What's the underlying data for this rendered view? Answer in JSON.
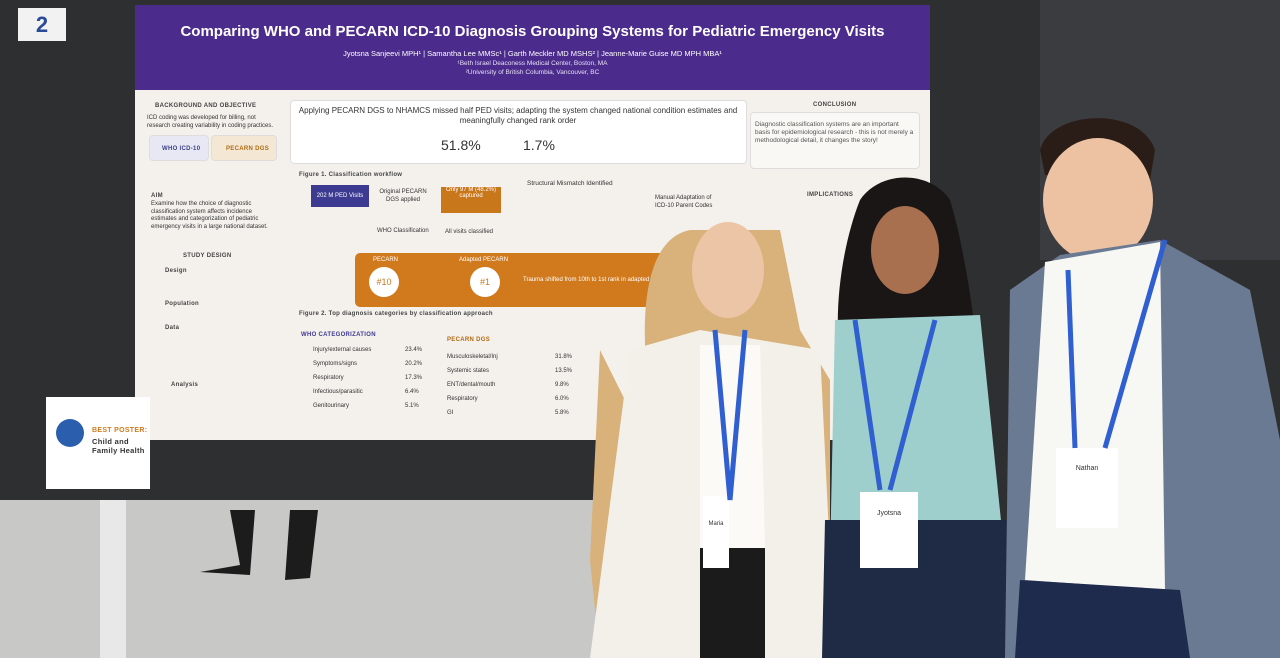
{
  "booth_number": "2",
  "poster": {
    "title": "Comparing WHO and PECARN ICD-10 Diagnosis Grouping Systems for Pediatric Emergency Visits",
    "authors": "Jyotsna Sanjeevi MPH¹ | Samantha Lee MMSc¹ | Garth Meckler MD MSHS² | Jeanne-Marie Guise MD MPH MBA¹",
    "affiliations": [
      "¹Beth Israel Deaconess Medical Center, Boston, MA",
      "²University of British Columbia, Vancouver, BC"
    ],
    "background_heading": "BACKGROUND AND OBJECTIVE",
    "background_text": "ICD coding was developed for billing, not research creating variability in coding practices.",
    "who_icd": "WHO ICD-10",
    "pecarn_dgs": "PECARN DGS",
    "aim_heading": "AIM",
    "aim_text": "Examine how the choice of diagnostic classification system affects incidence estimates and categorization of pediatric emergency visits in a large national dataset.",
    "study_heading": "STUDY DESIGN",
    "study_items": [
      "Design",
      "Population",
      "Data",
      "Analysis"
    ],
    "headline": "Applying PECARN DGS to NHAMCS missed half PED visits; adapting the system changed national condition estimates and meaningfully changed rank order",
    "stats": [
      "51.8%",
      "1.7%"
    ],
    "figure1": "Figure 1. Classification workflow",
    "workflow": [
      "202 M PED Visits",
      "Original PECARN DGS applied",
      "Only 97 M (48.2%) captured",
      "Structural Mismatch Identified",
      "Manual Adaptation of ICD-10 Parent Codes",
      "WHO Classification",
      "All visits classified"
    ],
    "ranks": [
      "PECARN",
      "#10",
      "Adapted PECARN",
      "#1",
      "Trauma shifted from 10th to 1st rank in adapted"
    ],
    "figure2": "Figure 2. Top diagnosis categories by classification approach",
    "who_heading": "WHO CATEGORIZATION",
    "who_categories": [
      [
        "Injury/external causes",
        "23.4%"
      ],
      [
        "Symptoms/signs",
        "20.2%"
      ],
      [
        "Respiratory",
        "17.3%"
      ],
      [
        "Infectious/parasitic",
        "6.4%"
      ],
      [
        "Genitourinary",
        "5.1%"
      ]
    ],
    "pecarn_heading": "PECARN DGS",
    "pecarn_categories": [
      [
        "Musculoskeletal/Inj",
        "31.8%"
      ],
      [
        "Systemic states",
        "13.5%"
      ],
      [
        "ENT/dental/mouth",
        "9.8%"
      ],
      [
        "Respiratory",
        "6.0%"
      ],
      [
        "GI",
        "5.8%"
      ]
    ],
    "conclusion_heading": "CONCLUSION",
    "conclusion_text": "Diagnostic classification systems are an important basis for epidemiological research - this is not merely a methodological detail, it changes the story!",
    "implications_heading": "IMPLICATIONS"
  },
  "award": {
    "label": "BEST POSTER:",
    "category": "Child and Family Health"
  },
  "badges": [
    "Maria",
    "Jyotsna",
    "Nathan"
  ]
}
